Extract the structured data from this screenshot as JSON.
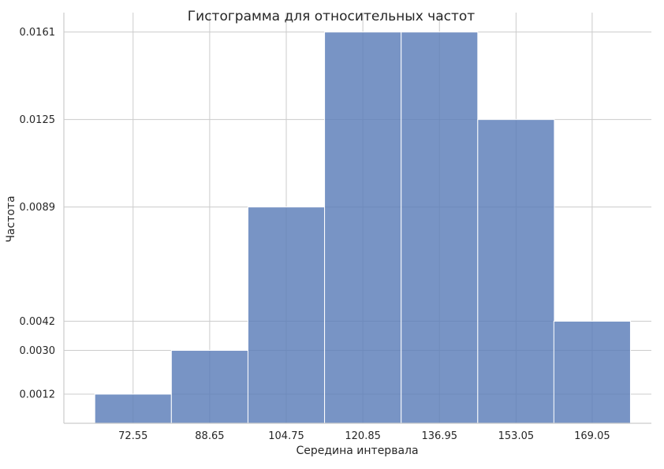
{
  "chart_data": {
    "type": "bar",
    "title": "Гистограмма для относительных частот",
    "xlabel": "Середина интервала",
    "ylabel": "Частота",
    "categories": [
      "72.55",
      "88.65",
      "104.75",
      "120.85",
      "136.95",
      "153.05",
      "169.05"
    ],
    "x_centers": [
      72.55,
      88.65,
      104.75,
      120.85,
      136.95,
      153.05,
      169.05
    ],
    "bin_width": 16.1,
    "values": [
      0.0012,
      0.003,
      0.0089,
      0.0161,
      0.0161,
      0.0125,
      0.0042
    ],
    "yticks": [
      "0.0012",
      "0.0030",
      "0.0042",
      "0.0089",
      "0.0125",
      "0.0161"
    ],
    "ylim": [
      0,
      0.0169
    ],
    "xlim": [
      58.0,
      181.5
    ],
    "grid": true,
    "bar_color": "#5a7db8",
    "bar_edge_color": "#ffffff",
    "grid_color": "#cccccc",
    "spine_color": "#cccccc"
  }
}
